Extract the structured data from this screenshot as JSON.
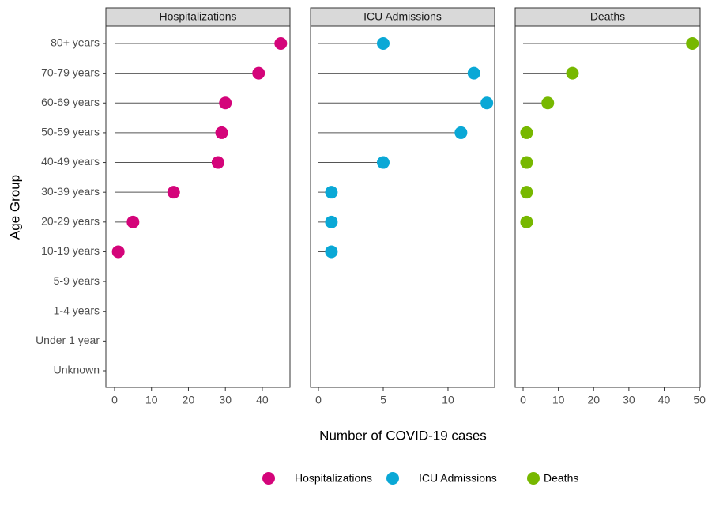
{
  "chart_data": {
    "type": "lollipop",
    "x_label": "Number of COVID-19 cases",
    "y_label": "Age Group",
    "categories": [
      "80+ years",
      "70-79 years",
      "60-69 years",
      "50-59 years",
      "40-49 years",
      "30-39 years",
      "20-29 years",
      "10-19 years",
      "5-9 years",
      "1-4 years",
      "Under 1 year",
      "Unknown"
    ],
    "series": [
      {
        "name": "Hospitalizations",
        "color": "#d4047a",
        "values": [
          45,
          39,
          30,
          29,
          28,
          16,
          5,
          1,
          null,
          null,
          null,
          null
        ],
        "xlim": [
          -2.35,
          47.5
        ],
        "xticks": [
          0,
          10,
          20,
          30,
          40
        ]
      },
      {
        "name": "ICU Admissions",
        "color": "#0aa8d6",
        "values": [
          5,
          12,
          13,
          11,
          5,
          1,
          1,
          1,
          null,
          null,
          null,
          null
        ],
        "xlim": [
          -0.61,
          13.6
        ],
        "xticks": [
          0,
          5,
          10
        ]
      },
      {
        "name": "Deaths",
        "color": "#77b800",
        "values": [
          48,
          14,
          7,
          1,
          1,
          1,
          1,
          null,
          null,
          null,
          null,
          null
        ],
        "xlim": [
          -2.24,
          50.2
        ],
        "xticks": [
          0,
          10,
          20,
          30,
          40,
          50
        ]
      }
    ]
  }
}
